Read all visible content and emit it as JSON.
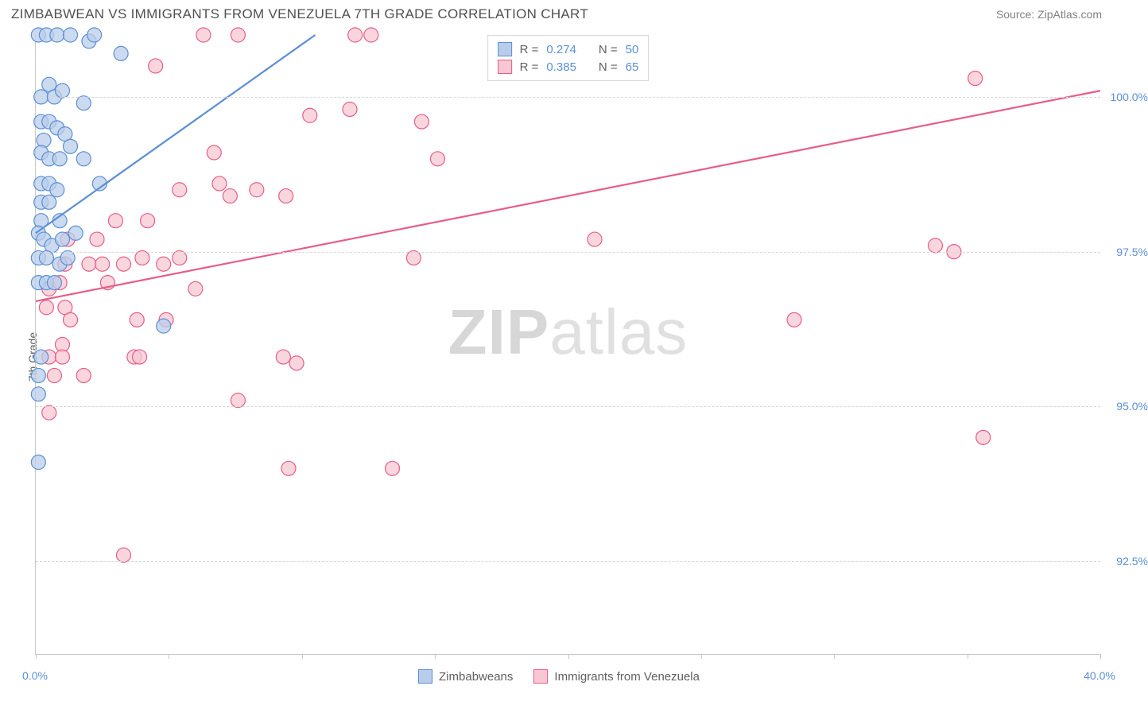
{
  "header": {
    "title": "ZIMBABWEAN VS IMMIGRANTS FROM VENEZUELA 7TH GRADE CORRELATION CHART",
    "source": "Source: ZipAtlas.com"
  },
  "axes": {
    "ylabel": "7th Grade",
    "xlim": [
      0,
      40
    ],
    "ylim": [
      91,
      101
    ],
    "yticks": [
      {
        "v": 92.5,
        "label": "92.5%"
      },
      {
        "v": 95.0,
        "label": "95.0%"
      },
      {
        "v": 97.5,
        "label": "97.5%"
      },
      {
        "v": 100.0,
        "label": "100.0%"
      }
    ],
    "xticks_major": [
      0,
      10,
      20,
      30,
      40
    ],
    "xticks_minor": [
      5,
      15,
      25,
      35
    ],
    "xtick_labels": [
      {
        "v": 0,
        "label": "0.0%"
      },
      {
        "v": 40,
        "label": "40.0%"
      }
    ]
  },
  "watermark": {
    "zip": "ZIP",
    "atlas": "atlas"
  },
  "legend_top": [
    {
      "color_fill": "#b9cdea",
      "color_stroke": "#5b8fd6",
      "r_label": "R =",
      "r_value": "0.274",
      "n_label": "N =",
      "n_value": "50"
    },
    {
      "color_fill": "#f7c8d3",
      "color_stroke": "#e85d87",
      "r_label": "R =",
      "r_value": "0.385",
      "n_label": "N =",
      "n_value": "65"
    }
  ],
  "legend_bottom": [
    {
      "color_fill": "#b9cdea",
      "color_stroke": "#5b8fd6",
      "label": "Zimbabweans"
    },
    {
      "color_fill": "#f7c8d3",
      "color_stroke": "#e85d87",
      "label": "Immigrants from Venezuela"
    }
  ],
  "series": {
    "blue": {
      "fill": "#b9cdea",
      "stroke": "#5b8fd6",
      "opacity": 0.75,
      "marker_r": 9,
      "points": [
        [
          0.1,
          101.0
        ],
        [
          0.4,
          101.0
        ],
        [
          0.8,
          101.0
        ],
        [
          1.3,
          101.0
        ],
        [
          2.0,
          100.9
        ],
        [
          2.2,
          101.0
        ],
        [
          3.2,
          100.7
        ],
        [
          0.2,
          100.0
        ],
        [
          0.5,
          100.2
        ],
        [
          0.7,
          100.0
        ],
        [
          1.0,
          100.1
        ],
        [
          1.8,
          99.9
        ],
        [
          0.2,
          99.6
        ],
        [
          0.5,
          99.6
        ],
        [
          0.8,
          99.5
        ],
        [
          1.1,
          99.4
        ],
        [
          0.3,
          99.3
        ],
        [
          0.2,
          99.1
        ],
        [
          0.5,
          99.0
        ],
        [
          0.9,
          99.0
        ],
        [
          1.3,
          99.2
        ],
        [
          1.8,
          99.0
        ],
        [
          0.2,
          98.6
        ],
        [
          0.5,
          98.6
        ],
        [
          0.8,
          98.5
        ],
        [
          2.4,
          98.6
        ],
        [
          0.2,
          98.3
        ],
        [
          0.5,
          98.3
        ],
        [
          0.2,
          98.0
        ],
        [
          0.9,
          98.0
        ],
        [
          0.1,
          97.8
        ],
        [
          0.3,
          97.7
        ],
        [
          0.6,
          97.6
        ],
        [
          1.0,
          97.7
        ],
        [
          1.5,
          97.8
        ],
        [
          0.1,
          97.4
        ],
        [
          0.4,
          97.4
        ],
        [
          0.9,
          97.3
        ],
        [
          1.2,
          97.4
        ],
        [
          0.1,
          97.0
        ],
        [
          0.4,
          97.0
        ],
        [
          0.7,
          97.0
        ],
        [
          4.8,
          96.3
        ],
        [
          0.2,
          95.8
        ],
        [
          0.1,
          95.5
        ],
        [
          0.1,
          95.2
        ],
        [
          0.1,
          94.1
        ]
      ],
      "trend": {
        "x0": 0,
        "y0": 97.8,
        "x1": 10.5,
        "y1": 101.0,
        "width": 2.2
      }
    },
    "pink": {
      "fill": "#f7c8d3",
      "stroke": "#e85d87",
      "opacity": 0.75,
      "marker_r": 9,
      "points": [
        [
          6.3,
          101.0
        ],
        [
          7.6,
          101.0
        ],
        [
          12.0,
          101.0
        ],
        [
          12.6,
          101.0
        ],
        [
          4.5,
          100.5
        ],
        [
          35.3,
          100.3
        ],
        [
          10.3,
          99.7
        ],
        [
          11.8,
          99.8
        ],
        [
          14.5,
          99.6
        ],
        [
          6.7,
          99.1
        ],
        [
          15.1,
          99.0
        ],
        [
          5.4,
          98.5
        ],
        [
          6.9,
          98.6
        ],
        [
          7.3,
          98.4
        ],
        [
          8.3,
          98.5
        ],
        [
          9.4,
          98.4
        ],
        [
          3.0,
          98.0
        ],
        [
          4.2,
          98.0
        ],
        [
          1.2,
          97.7
        ],
        [
          2.3,
          97.7
        ],
        [
          21.0,
          97.7
        ],
        [
          33.8,
          97.6
        ],
        [
          34.5,
          97.5
        ],
        [
          1.1,
          97.3
        ],
        [
          2.0,
          97.3
        ],
        [
          2.5,
          97.3
        ],
        [
          3.3,
          97.3
        ],
        [
          4.0,
          97.4
        ],
        [
          4.8,
          97.3
        ],
        [
          5.4,
          97.4
        ],
        [
          14.2,
          97.4
        ],
        [
          0.5,
          96.9
        ],
        [
          0.9,
          97.0
        ],
        [
          2.7,
          97.0
        ],
        [
          6.0,
          96.9
        ],
        [
          0.4,
          96.6
        ],
        [
          1.1,
          96.6
        ],
        [
          1.3,
          96.4
        ],
        [
          3.8,
          96.4
        ],
        [
          4.9,
          96.4
        ],
        [
          28.5,
          96.4
        ],
        [
          1.0,
          96.0
        ],
        [
          0.5,
          95.8
        ],
        [
          1.0,
          95.8
        ],
        [
          3.7,
          95.8
        ],
        [
          3.9,
          95.8
        ],
        [
          9.3,
          95.8
        ],
        [
          9.8,
          95.7
        ],
        [
          0.7,
          95.5
        ],
        [
          1.8,
          95.5
        ],
        [
          7.6,
          95.1
        ],
        [
          0.5,
          94.9
        ],
        [
          35.6,
          94.5
        ],
        [
          9.5,
          94.0
        ],
        [
          13.4,
          94.0
        ],
        [
          3.3,
          92.6
        ]
      ],
      "trend": {
        "x0": 0,
        "y0": 96.7,
        "x1": 40,
        "y1": 100.1,
        "width": 2.2
      }
    }
  },
  "colors": {
    "text_gray": "#606060",
    "tick_blue": "#5b8fd6",
    "grid": "#d8d8d8",
    "axis": "#c8c8c8"
  }
}
